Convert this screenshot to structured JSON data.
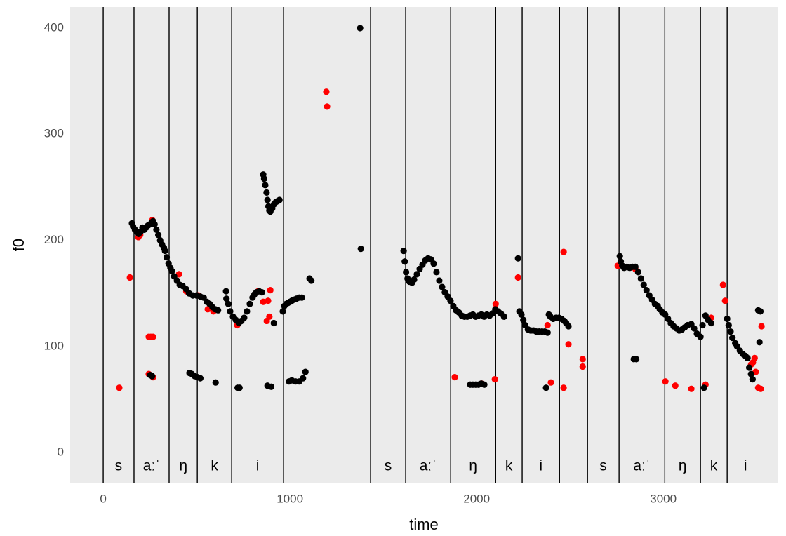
{
  "chart_data": {
    "type": "scatter",
    "x_label": "time",
    "y_label": "f0",
    "xlim": [
      -177,
      3612
    ],
    "ylim": [
      -28.4,
      419.8
    ],
    "xticks": [
      0,
      1000,
      2000,
      3000
    ],
    "yticks": [
      0,
      100,
      200,
      300,
      400
    ],
    "x_minor_ticks": [
      500,
      1500,
      2500,
      3500
    ],
    "y_minor_ticks": [
      50,
      150,
      250,
      350
    ],
    "grid": true,
    "vlines": [
      0,
      165,
      353,
      504,
      688,
      966,
      1432,
      1620,
      1861,
      2102,
      2244,
      2444,
      2594,
      2763,
      3008,
      3199,
      3342
    ],
    "annotations": [
      {
        "text": "s",
        "x": 82,
        "y": -13
      },
      {
        "text": "aːˈ",
        "x": 259,
        "y": -13
      },
      {
        "text": "ŋ",
        "x": 429,
        "y": -13
      },
      {
        "text": "k",
        "x": 596,
        "y": -13
      },
      {
        "text": "i",
        "x": 827,
        "y": -13
      },
      {
        "text": "s",
        "x": 1526,
        "y": -13
      },
      {
        "text": "aːˈ",
        "x": 1740,
        "y": -13
      },
      {
        "text": "ŋ",
        "x": 1981,
        "y": -13
      },
      {
        "text": "k",
        "x": 2173,
        "y": -13
      },
      {
        "text": "i",
        "x": 2344,
        "y": -13
      },
      {
        "text": "s",
        "x": 2678,
        "y": -13
      },
      {
        "text": "aːˈ",
        "x": 2885,
        "y": -13
      },
      {
        "text": "ŋ",
        "x": 3103,
        "y": -13
      },
      {
        "text": "k",
        "x": 3270,
        "y": -13
      },
      {
        "text": "i",
        "x": 3440,
        "y": -13
      }
    ],
    "series": [
      {
        "color": "#FF0000",
        "x": [
          86,
          143,
          188,
          198,
          263,
          244,
          255,
          267,
          244,
          267,
          406,
          445,
          510,
          560,
          590,
          718,
          857,
          876,
          883,
          890,
          895,
          830,
          1195,
          1199,
          1883,
          2026,
          2098,
          2102,
          2222,
          2466,
          2492,
          2466,
          2398,
          2568,
          2568,
          2380,
          2756,
          2850,
          3011,
          3064,
          3150,
          3226,
          3256,
          3320,
          3331,
          3489,
          3508,
          3522,
          3526,
          3470,
          3480,
          3495
        ],
        "values": [
          61,
          165,
          203,
          205,
          219,
          109,
          109,
          109,
          74,
          71,
          168,
          152,
          148,
          135,
          133,
          120,
          142,
          124,
          143,
          128,
          153,
          152,
          340,
          326,
          71,
          65,
          69,
          140,
          165,
          189,
          102,
          61,
          66,
          88,
          81,
          120,
          176,
          173,
          67,
          63,
          60,
          64,
          127,
          158,
          143,
          89,
          61,
          60,
          119,
          83,
          85,
          76
        ]
      },
      {
        "color": "#000000",
        "x": [
          154,
          160,
          170,
          180,
          190,
          200,
          210,
          220,
          230,
          240,
          250,
          260,
          267,
          275,
          285,
          295,
          305,
          315,
          325,
          331,
          340,
          350,
          360,
          368,
          380,
          395,
          410,
          425,
          444,
          460,
          480,
          500,
          520,
          538,
          555,
          570,
          585,
          600,
          615,
          658,
          660,
          670,
          680,
          695,
          710,
          726,
          740,
          755,
          770,
          785,
          800,
          810,
          820,
          835,
          850,
          857,
          862,
          868,
          875,
          880,
          885,
          890,
          895,
          905,
          915,
          925,
          935,
          944,
          914,
          962,
          970,
          980,
          990,
          1000,
          1010,
          1020,
          1035,
          1050,
          1064,
          1105,
          1115,
          252,
          262,
          462,
          475,
          490,
          505,
          520,
          602,
          720,
          730,
          880,
          900,
          995,
          1010,
          1030,
          1050,
          1070,
          1083,
          1376,
          1380,
          1609,
          1615,
          1622,
          1630,
          1640,
          1654,
          1665,
          1680,
          1695,
          1710,
          1725,
          1740,
          1755,
          1770,
          1785,
          1800,
          1815,
          1830,
          1845,
          1860,
          1875,
          1890,
          1905,
          1920,
          1935,
          1950,
          1965,
          1980,
          1995,
          2010,
          2025,
          2040,
          2055,
          2070,
          2085,
          2100,
          2115,
          2130,
          2147,
          1966,
          1980,
          1995,
          2010,
          2025,
          2041,
          2222,
          2229,
          2240,
          2250,
          2260,
          2275,
          2290,
          2304,
          2320,
          2335,
          2350,
          2365,
          2380,
          2387,
          2395,
          2410,
          2425,
          2440,
          2455,
          2470,
          2480,
          2492,
          2372,
          2767,
          2772,
          2780,
          2790,
          2805,
          2820,
          2835,
          2850,
          2865,
          2880,
          2895,
          2910,
          2925,
          2940,
          2955,
          2970,
          2981,
          2995,
          3010,
          3025,
          3040,
          3055,
          3070,
          3085,
          3100,
          3115,
          3130,
          3150,
          3165,
          3180,
          3199,
          3210,
          3226,
          3240,
          3256,
          3342,
          3350,
          3360,
          3370,
          3385,
          3395,
          3410,
          3425,
          3440,
          3451,
          3460,
          3470,
          3478,
          3508,
          3515,
          3520,
          2842,
          2855,
          3218
        ],
        "values": [
          216,
          213,
          210,
          208,
          206,
          208,
          212,
          210,
          212,
          214,
          215,
          217,
          218,
          215,
          210,
          205,
          200,
          196,
          193,
          190,
          184,
          178,
          174,
          171,
          166,
          162,
          158,
          157,
          154,
          150,
          148,
          148,
          147,
          146,
          142,
          140,
          137,
          135,
          134,
          152,
          145,
          140,
          133,
          128,
          125,
          122,
          124,
          127,
          133,
          140,
          146,
          149,
          151,
          152,
          151,
          262,
          258,
          252,
          245,
          238,
          232,
          228,
          227,
          230,
          234,
          236,
          237,
          238,
          122,
          133,
          138,
          140,
          141,
          142,
          143,
          144,
          145,
          146,
          146,
          164,
          162,
          73,
          72,
          75,
          74,
          72,
          71,
          70,
          66,
          61,
          61,
          63,
          62,
          67,
          68,
          67,
          67,
          70,
          76,
          400,
          192,
          190,
          180,
          170,
          164,
          161,
          160,
          163,
          168,
          173,
          177,
          181,
          183,
          182,
          178,
          170,
          162,
          156,
          151,
          147,
          143,
          138,
          134,
          132,
          129,
          128,
          128,
          129,
          130,
          128,
          129,
          130,
          128,
          130,
          129,
          131,
          135,
          133,
          131,
          128,
          64,
          64,
          64,
          64,
          65,
          64,
          183,
          133,
          130,
          125,
          120,
          116,
          115,
          115,
          114,
          114,
          114,
          114,
          113,
          130,
          128,
          126,
          127,
          127,
          126,
          124,
          122,
          119,
          61,
          185,
          180,
          176,
          174,
          175,
          174,
          175,
          175,
          170,
          164,
          158,
          153,
          148,
          144,
          140,
          138,
          135,
          132,
          130,
          126,
          122,
          119,
          117,
          115,
          116,
          118,
          120,
          121,
          117,
          112,
          109,
          120,
          129,
          125,
          122,
          126,
          120,
          114,
          108,
          103,
          100,
          96,
          93,
          91,
          89,
          80,
          74,
          69,
          134,
          104,
          133,
          88,
          88,
          61
        ]
      }
    ]
  }
}
